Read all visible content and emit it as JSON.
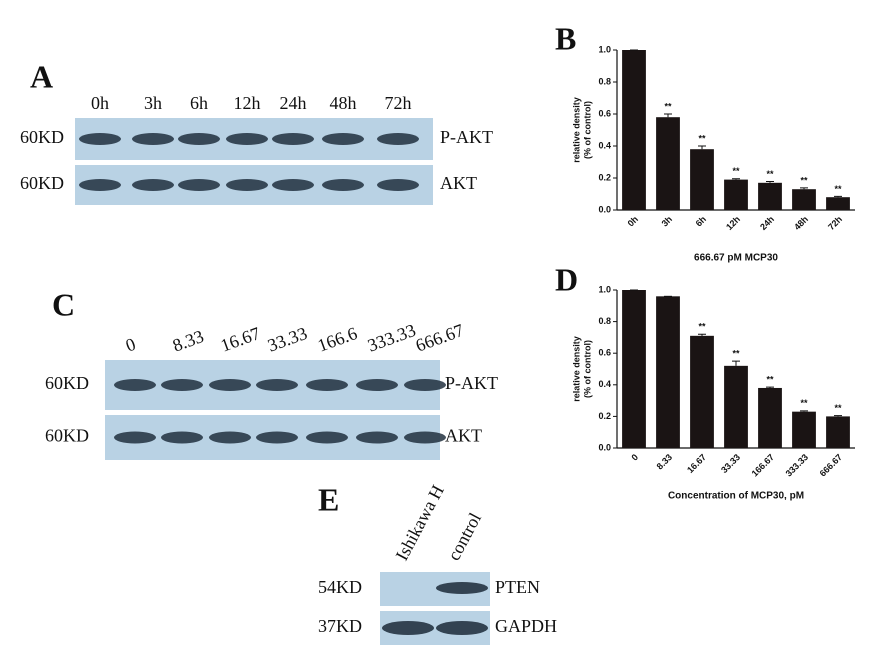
{
  "chart_data": [
    {
      "type": "bar",
      "panel_label": "B",
      "categories": [
        "0h",
        "3h",
        "6h",
        "12h",
        "24h",
        "48h",
        "72h"
      ],
      "values": [
        1.0,
        0.58,
        0.38,
        0.19,
        0.17,
        0.13,
        0.08
      ],
      "errors": [
        0,
        0.02,
        0.02,
        0.005,
        0.008,
        0.008,
        0.005
      ],
      "annotations": [
        null,
        "**",
        "**",
        "**",
        "**",
        "**",
        "**"
      ],
      "color": "#1a1414",
      "ylabel": [
        "relative density",
        "(% of control)"
      ],
      "xlabel": "666.67 pM MCP30",
      "ylim": [
        0,
        1
      ],
      "yticks": [
        {
          "value": 0,
          "label": "0.0"
        },
        0.2,
        0.4,
        0.6,
        0.8,
        {
          "value": 1,
          "label": "1.0"
        }
      ]
    },
    {
      "type": "bar",
      "panel_label": "D",
      "categories": [
        "0",
        "8.33",
        "16.67",
        "33.33",
        "166.67",
        "333.33",
        "666.67"
      ],
      "values": [
        1.0,
        0.96,
        0.71,
        0.52,
        0.38,
        0.23,
        0.2
      ],
      "errors": [
        0,
        0,
        0.01,
        0.03,
        0.005,
        0.005,
        0.005
      ],
      "annotations": [
        null,
        null,
        "**",
        "**",
        "**",
        "**",
        "**"
      ],
      "color": "#1a1414",
      "ylabel": [
        "relative density",
        "(% of control)"
      ],
      "xlabel": "Concentration of MCP30, pM",
      "ylim": [
        0,
        1
      ],
      "yticks": [
        {
          "value": 0,
          "label": "0.0"
        },
        0.2,
        0.4,
        0.6,
        0.8,
        {
          "value": 1,
          "label": "1.0"
        }
      ]
    }
  ],
  "blots": [
    {
      "panel_label": "A",
      "lanes": [
        "0h",
        "3h",
        "6h",
        "12h",
        "24h",
        "48h",
        "72h"
      ],
      "rows": [
        {
          "left": "60KD",
          "right": "P-AKT"
        },
        {
          "left": "60KD",
          "right": "AKT"
        }
      ]
    },
    {
      "panel_label": "C",
      "lanes": [
        "0",
        "8.33",
        "16.67",
        "33.33",
        "166.6",
        "333.33",
        "666.67"
      ],
      "rows": [
        {
          "left": "60KD",
          "right": "P-AKT"
        },
        {
          "left": "60KD",
          "right": "AKT"
        }
      ]
    },
    {
      "panel_label": "E",
      "lanes": [
        "Ishikawa H",
        "control"
      ],
      "rows": [
        {
          "left": "54KD",
          "right": "PTEN"
        },
        {
          "left": "37KD",
          "right": "GAPDH"
        }
      ]
    }
  ]
}
